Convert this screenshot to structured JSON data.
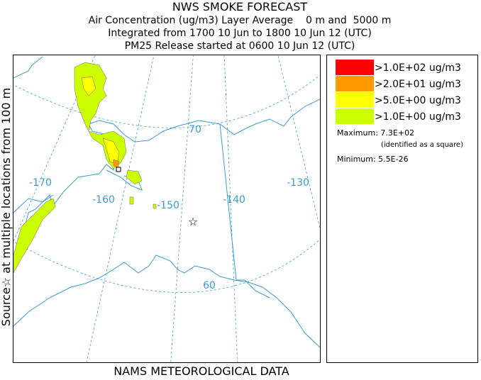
{
  "header": {
    "title": "NWS SMOKE FORECAST",
    "lines": [
      "Air Concentration (ug/m3) Layer Average    0 m and  5000 m",
      "Integrated from 1700 10 Jun to 1800 10 Jun 12 (UTC)",
      "PM25 Release started at 0600 10 Jun 12 (UTC)"
    ]
  },
  "side_label": "Source☆ at multiple locations from 100 m",
  "footer": "NAMS METEOROLOGICAL DATA",
  "map": {
    "grid_labels": [
      "70",
      "-170",
      "-160",
      "-150",
      "-140",
      "-130",
      "60"
    ]
  },
  "legend": {
    "items": [
      {
        "label": ">1.0E+02 ug/m3",
        "color": "#ff0000"
      },
      {
        "label": ">2.0E+01 ug/m3",
        "color": "#ff9900"
      },
      {
        "label": ">5.0E+00 ug/m3",
        "color": "#ffff00"
      },
      {
        "label": ">1.0E+00 ug/m3",
        "color": "#ccff00"
      }
    ],
    "maximum": "Maximum: 7.3E+02",
    "maximum_note": "(identified as a square)",
    "minimum": "Minimum: 5.5E-26"
  }
}
